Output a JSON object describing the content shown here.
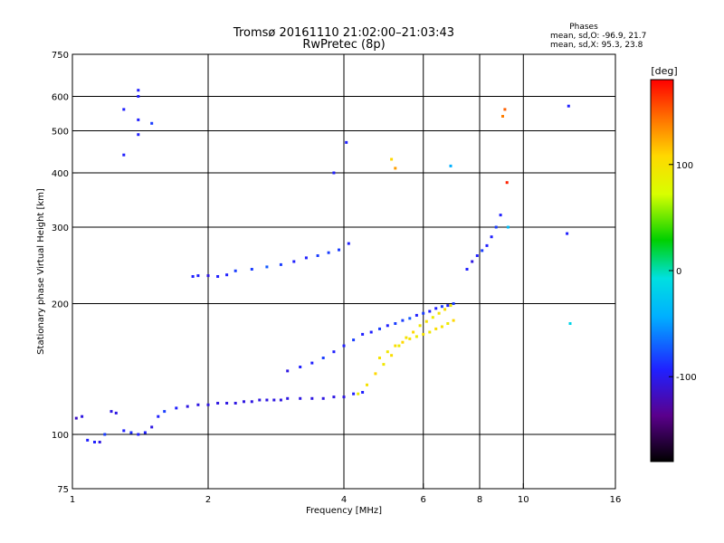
{
  "chart_data": {
    "type": "scatter",
    "title": "Tromsø 20161110 21:02:00–21:03:43",
    "subtitle": "RwPretec (8p)",
    "phases": {
      "title": "Phases",
      "line_o": "mean, sd,O: -96.9, 21.7",
      "line_x": "mean, sd,X:  95.3, 23.8"
    },
    "xlabel": "Frequency [MHz]",
    "ylabel": "Stationary phase Virtual Height [km]",
    "x_scale": "log",
    "y_scale": "log",
    "xlim": [
      1,
      16
    ],
    "ylim": [
      75,
      750
    ],
    "x_ticks": [
      1,
      2,
      4,
      6,
      8,
      10,
      16
    ],
    "x_tick_labels": [
      "1",
      "2",
      "4",
      "6",
      "8",
      "10",
      "16"
    ],
    "x_grid": [
      2,
      4,
      6,
      8,
      10
    ],
    "y_ticks": [
      75,
      100,
      200,
      300,
      400,
      500,
      600,
      750
    ],
    "y_tick_labels": [
      "75",
      "100",
      "200",
      "300",
      "400",
      "500",
      "600",
      "750"
    ],
    "y_grid": [
      100,
      200,
      300,
      400,
      500,
      600
    ],
    "grid": true,
    "colorbar": {
      "label": "[deg]",
      "range": [
        -180,
        180
      ],
      "ticks": [
        100,
        0,
        -100
      ],
      "tick_labels": [
        "100",
        "0",
        "-100"
      ]
    },
    "series": [
      {
        "name": "",
        "description_color": "phase",
        "x": [
          1.02,
          1.05,
          1.08,
          1.12,
          1.15,
          1.18,
          1.22,
          1.25,
          1.3,
          1.35,
          1.4,
          1.45,
          1.5,
          1.55,
          1.6,
          1.7,
          1.8,
          1.9,
          2.0,
          2.1,
          2.2,
          2.3,
          2.4,
          2.5,
          2.6,
          2.7,
          2.8,
          2.9,
          3.0,
          3.2,
          3.4,
          3.6,
          3.8,
          4.0,
          4.2,
          4.4
        ],
        "y": [
          109,
          110,
          97,
          96,
          96,
          100,
          113,
          112,
          102,
          101,
          100,
          101,
          104,
          110,
          113,
          115,
          116,
          117,
          117,
          118,
          118,
          118,
          119,
          119,
          120,
          120,
          120,
          120,
          121,
          121,
          121,
          121,
          122,
          122,
          124,
          125
        ],
        "phase": [
          -120,
          -110,
          -100,
          -100,
          -110,
          -90,
          -110,
          -110,
          -100,
          -95,
          -100,
          -100,
          -110,
          -100,
          -90,
          -100,
          -110,
          -110,
          -110,
          -110,
          -110,
          -110,
          -110,
          -110,
          -110,
          -110,
          -110,
          -110,
          -110,
          -110,
          -110,
          -110,
          -110,
          -110,
          -100,
          -100
        ]
      },
      {
        "name": "",
        "x": [
          1.85,
          1.9,
          2.0,
          2.1,
          2.2,
          2.3,
          2.5,
          2.7,
          2.9,
          3.1,
          3.3,
          3.5,
          3.7,
          3.9,
          4.1
        ],
        "y": [
          231,
          232,
          232,
          231,
          233,
          238,
          240,
          243,
          246,
          250,
          255,
          258,
          262,
          266,
          275
        ],
        "phase": [
          -100,
          -100,
          -110,
          -100,
          -100,
          -90,
          -90,
          -80,
          -90,
          -100,
          -100,
          -90,
          -90,
          -90,
          -100
        ]
      },
      {
        "name": "",
        "x": [
          3.0,
          3.2,
          3.4,
          3.6,
          3.8,
          4.0,
          4.2,
          4.4,
          4.6,
          4.8,
          5.0,
          5.2,
          5.4,
          5.6,
          5.8,
          6.0,
          6.2,
          6.4,
          6.6,
          6.8,
          7.0
        ],
        "y": [
          140,
          143,
          146,
          150,
          155,
          160,
          165,
          170,
          172,
          175,
          178,
          180,
          183,
          185,
          188,
          190,
          192,
          195,
          197,
          198,
          200
        ],
        "phase": [
          -110,
          -100,
          -100,
          -90,
          -100,
          -100,
          -90,
          -100,
          -100,
          -90,
          -100,
          -90,
          -90,
          -80,
          -100,
          -90,
          -100,
          -100,
          -90,
          -100,
          -90
        ]
      },
      {
        "name": "",
        "x": [
          4.3,
          4.5,
          4.7,
          4.9,
          5.1,
          5.3,
          5.5,
          5.7,
          5.9,
          6.1,
          6.3,
          6.5,
          6.7,
          6.9
        ],
        "y": [
          124,
          130,
          138,
          145,
          152,
          160,
          167,
          172,
          178,
          182,
          186,
          190,
          194,
          198
        ],
        "phase": [
          90,
          100,
          110,
          95,
          105,
          90,
          100,
          110,
          95,
          100,
          90,
          100,
          105,
          95
        ]
      },
      {
        "name": "",
        "x": [
          4.8,
          5.0,
          5.2,
          5.4,
          5.6,
          5.8,
          6.0,
          6.2,
          6.4,
          6.6,
          6.8,
          7.0
        ],
        "y": [
          150,
          155,
          160,
          163,
          166,
          168,
          170,
          172,
          175,
          177,
          180,
          183
        ],
        "phase": [
          100,
          95,
          105,
          110,
          100,
          90,
          100,
          95,
          105,
          100,
          90,
          110
        ]
      },
      {
        "name": "",
        "x": [
          7.5,
          7.7,
          7.9,
          8.1,
          8.3,
          8.5,
          8.7,
          8.9
        ],
        "y": [
          240,
          250,
          258,
          265,
          272,
          285,
          300,
          320
        ],
        "phase": [
          -100,
          -110,
          -100,
          -90,
          -100,
          -100,
          -90,
          -100
        ]
      },
      {
        "name": "",
        "x": [
          1.3,
          1.3,
          1.4,
          1.4,
          1.4,
          1.4,
          1.5,
          3.8,
          4.05,
          5.1,
          5.2,
          6.9,
          9.0,
          9.1,
          9.2,
          9.25,
          12.5,
          12.6,
          12.7
        ],
        "y": [
          560,
          440,
          620,
          600,
          530,
          490,
          520,
          400,
          470,
          430,
          410,
          415,
          540,
          560,
          380,
          300,
          290,
          570,
          180
        ],
        "phase": [
          -100,
          -100,
          -100,
          -100,
          -100,
          -100,
          -90,
          -100,
          -100,
          110,
          130,
          -50,
          140,
          150,
          170,
          -40,
          -100,
          -100,
          -20
        ]
      }
    ]
  }
}
